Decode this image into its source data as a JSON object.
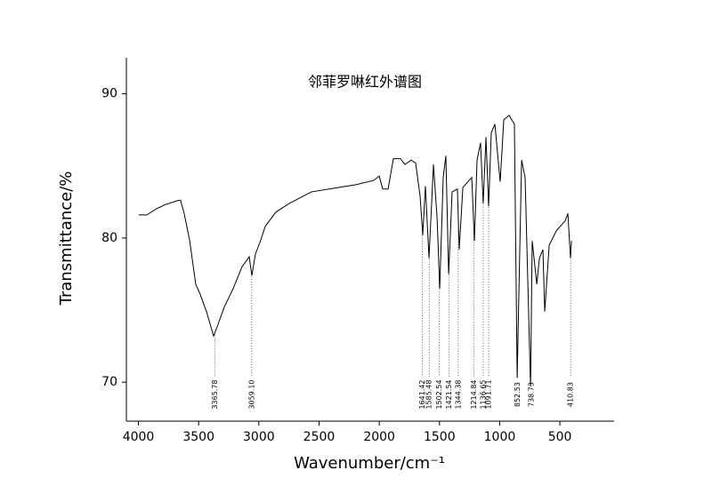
{
  "chart_data": {
    "type": "line",
    "title": "邻菲罗啉红外谱图",
    "x_label": "Wavenumber/cm⁻¹",
    "y_label": "Transmittance/%",
    "xlim": [
      4100,
      50
    ],
    "ylim": [
      67.3,
      92.5
    ],
    "xticks": [
      4000,
      3500,
      3000,
      2500,
      2000,
      1500,
      1000,
      500
    ],
    "yticks": [
      70,
      80,
      90
    ],
    "series": [
      {
        "color": "#000000",
        "x": [
          3997,
          3930,
          3856,
          3782,
          3671,
          3650,
          3620,
          3575,
          3524,
          3487,
          3435,
          3376,
          3339,
          3288,
          3213,
          3140,
          3080,
          3058,
          3028,
          2991,
          2947,
          2858,
          2747,
          2563,
          2341,
          2193,
          2045,
          2001,
          1971,
          1927,
          1883,
          1824,
          1787,
          1735,
          1698,
          1661,
          1639,
          1617,
          1587,
          1550,
          1520,
          1498,
          1469,
          1447,
          1424,
          1395,
          1351,
          1336,
          1306,
          1232,
          1210,
          1188,
          1159,
          1137,
          1114,
          1092,
          1070,
          1040,
          996,
          966,
          922,
          878,
          855,
          818,
          789,
          744,
          730,
          692,
          670,
          641,
          626,
          589,
          530,
          456,
          434,
          412,
          404
        ],
        "values": [
          81.6,
          81.6,
          82.0,
          82.3,
          82.6,
          82.6,
          81.7,
          79.85,
          76.8,
          76.1,
          74.9,
          73.2,
          74.0,
          75.2,
          76.5,
          78.0,
          78.7,
          77.4,
          78.9,
          79.7,
          80.8,
          81.8,
          82.4,
          83.2,
          83.5,
          83.7,
          84.0,
          84.3,
          83.4,
          83.4,
          85.5,
          85.5,
          85.1,
          85.4,
          85.2,
          82.9,
          80.2,
          83.6,
          78.6,
          85.1,
          81.4,
          76.5,
          84.2,
          85.7,
          77.5,
          83.2,
          83.4,
          79.2,
          83.5,
          84.2,
          79.8,
          85.4,
          86.6,
          82.4,
          87.0,
          82.2,
          87.3,
          87.9,
          83.9,
          88.2,
          88.5,
          87.9,
          70.3,
          85.4,
          84.2,
          69.7,
          79.8,
          76.8,
          78.6,
          79.2,
          74.9,
          79.5,
          80.5,
          81.2,
          81.7,
          78.6,
          79.8
        ]
      }
    ],
    "peaks": [
      {
        "value": 3365.78,
        "label": "3365.78"
      },
      {
        "value": 3059.1,
        "label": "3059.10"
      },
      {
        "value": 1641.42,
        "label": "1641.42"
      },
      {
        "value": 1585.48,
        "label": "1585.48"
      },
      {
        "value": 1502.54,
        "label": "1502.54"
      },
      {
        "value": 1421.54,
        "label": "1421.54"
      },
      {
        "value": 1344.38,
        "label": "1344.38"
      },
      {
        "value": 1214.84,
        "label": "1214.84"
      },
      {
        "value": 1136.65,
        "label": "1136.65"
      },
      {
        "value": 1091.71,
        "label": "1091.71"
      },
      {
        "value": 852.53,
        "label": "852.53"
      },
      {
        "value": 738.73,
        "label": "738.73"
      },
      {
        "value": 410.83,
        "label": "410.83"
      }
    ]
  }
}
